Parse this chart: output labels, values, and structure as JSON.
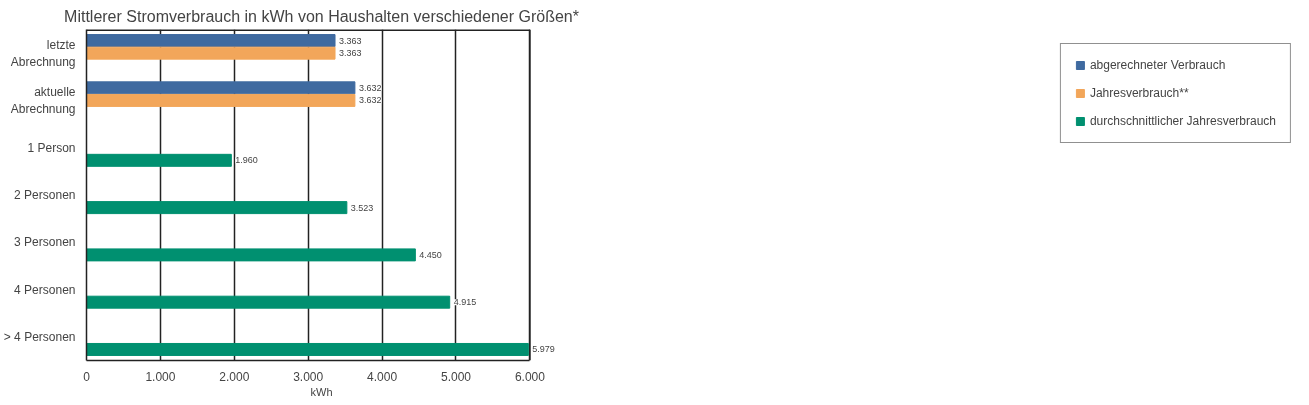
{
  "chart_data": {
    "type": "bar",
    "orientation": "horizontal",
    "title": "Mittlerer Stromverbrauch in kWh von Haushalten verschiedener Größen*",
    "xlabel": "kWh",
    "categories": [
      "letzte Abrechnung",
      "aktuelle Abrechnung",
      "1 Person",
      "2 Personen",
      "3 Personen",
      "4 Personen",
      "> 4 Personen"
    ],
    "series": [
      {
        "name": "abgerechneter Verbrauch",
        "color": "#3f6aa0",
        "values": [
          3363,
          3632,
          null,
          null,
          null,
          null,
          null
        ],
        "value_labels": [
          "3.363",
          "3.632",
          null,
          null,
          null,
          null,
          null
        ]
      },
      {
        "name": "Jahresverbrauch**",
        "color": "#f2a65a",
        "values": [
          3363,
          3632,
          null,
          null,
          null,
          null,
          null
        ],
        "value_labels": [
          "3.363",
          "3.632",
          null,
          null,
          null,
          null,
          null
        ]
      },
      {
        "name": "durchschnittlicher Jahresverbrauch",
        "color": "#009070",
        "values": [
          null,
          null,
          1960,
          3523,
          4450,
          4915,
          5979
        ],
        "value_labels": [
          null,
          null,
          "1.960",
          "3.523",
          "4.450",
          "4.915",
          "5.979"
        ]
      }
    ],
    "xlim": [
      0,
      6000
    ],
    "xticks": [
      0,
      {
        "value": 1000,
        "label": "1.000"
      },
      {
        "value": 2000,
        "label": "2.000"
      },
      {
        "value": 3000,
        "label": "3.000"
      },
      {
        "value": 4000,
        "label": "4.000"
      },
      {
        "value": 5000,
        "label": "5.000"
      },
      {
        "value": 6000,
        "label": "6.000"
      }
    ],
    "grid": "x",
    "legend": "right"
  }
}
